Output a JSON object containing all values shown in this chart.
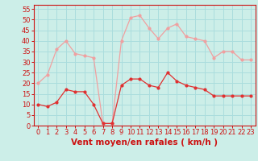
{
  "hours": [
    0,
    1,
    2,
    3,
    4,
    5,
    6,
    7,
    8,
    9,
    10,
    11,
    12,
    13,
    14,
    15,
    16,
    17,
    18,
    19,
    20,
    21,
    22,
    23
  ],
  "wind_mean": [
    10,
    9,
    11,
    17,
    16,
    16,
    10,
    1,
    1,
    19,
    22,
    22,
    19,
    18,
    25,
    21,
    19,
    18,
    17,
    14,
    14,
    14,
    14,
    14
  ],
  "wind_gust": [
    20,
    24,
    36,
    40,
    34,
    33,
    32,
    1,
    1,
    40,
    51,
    52,
    46,
    41,
    46,
    48,
    42,
    41,
    40,
    32,
    35,
    35,
    31,
    31
  ],
  "mean_color": "#e03030",
  "gust_color": "#f0a0a0",
  "bg_color": "#cceee8",
  "grid_color": "#aadddd",
  "xlabel": "Vent moyen/en rafales ( km/h )",
  "ylim": [
    0,
    57
  ],
  "yticks": [
    0,
    5,
    10,
    15,
    20,
    25,
    30,
    35,
    40,
    45,
    50,
    55
  ],
  "tick_fontsize": 6,
  "axis_fontsize": 7.5
}
